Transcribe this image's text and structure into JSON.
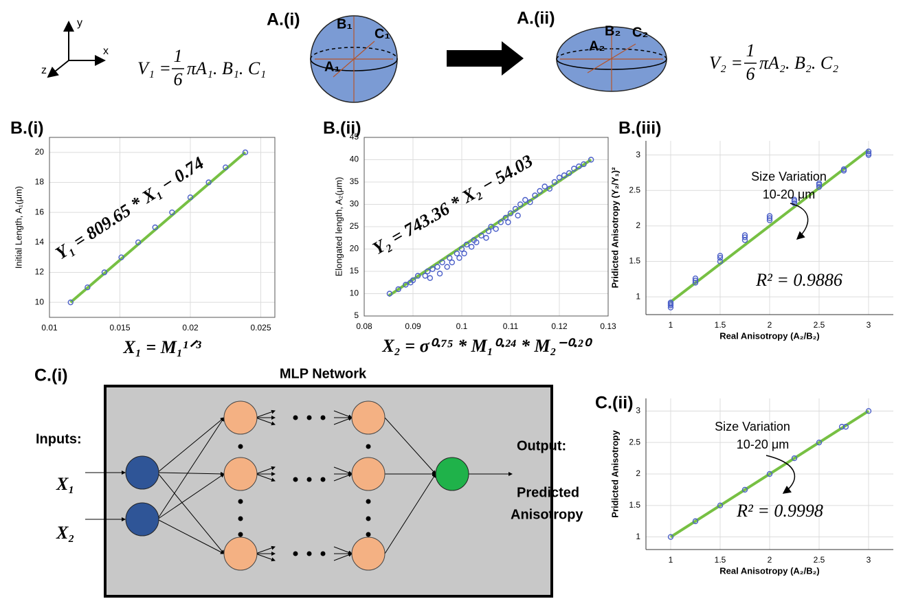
{
  "panel_a": {
    "axes": {
      "y": "y",
      "x": "x",
      "z": "z"
    },
    "label_i": "A.(i)",
    "label_ii": "A.(ii)",
    "v1": {
      "lhs": "V₁ =",
      "num": "1",
      "den": "6",
      "rhs": "πA₁. B₁. C₁"
    },
    "v2": {
      "lhs": "V₂ =",
      "num": "1",
      "den": "6",
      "rhs": "πA₂. B₂. C₂"
    },
    "sphere": {
      "a": "A₁",
      "b": "B₁",
      "c": "C₁"
    },
    "ellipsoid": {
      "a": "A₂",
      "b": "B₂",
      "c": "C₂"
    }
  },
  "panel_c_i": {
    "label": "C.(i)",
    "title": "MLP Network",
    "inputs": "Inputs:",
    "x1": "X₁",
    "x2": "X₂",
    "output": "Output:",
    "output_name": [
      "Predicted",
      "Anisotropy"
    ]
  },
  "chart_data": [
    {
      "type": "scatter",
      "title": "B.(i)",
      "xlabel": "X₁ = M₁¹ᐟ³",
      "ylabel": "Initial Length, A₁(μm)",
      "xlim": [
        0.01,
        0.026
      ],
      "ylim": [
        9,
        21
      ],
      "xticks": [
        0.01,
        0.015,
        0.02,
        0.025
      ],
      "yticks": [
        10,
        12,
        14,
        16,
        18,
        20
      ],
      "grid": true,
      "annotations": [
        "Y₁ = 809.65 * X₁ − 0.74"
      ],
      "points": {
        "color": "#4b5fc8",
        "x": [
          0.0115,
          0.0127,
          0.0139,
          0.0151,
          0.0163,
          0.0175,
          0.0187,
          0.02,
          0.0213,
          0.0225,
          0.0239
        ],
        "y": [
          10,
          11,
          12,
          13,
          14,
          15,
          16,
          17,
          18,
          19,
          20
        ]
      },
      "fit": {
        "color": "#77c043",
        "x": [
          0.0115,
          0.0239
        ],
        "y": [
          10,
          20
        ]
      }
    },
    {
      "type": "scatter",
      "title": "B.(ii)",
      "xlabel": "X₂ = σ⁰·⁷⁵ * M₁⁰·²⁴ * M₂⁻⁰·²⁰",
      "ylabel": "Elongated length, A₂(μm)",
      "xlim": [
        0.08,
        0.13
      ],
      "ylim": [
        5,
        45
      ],
      "xticks": [
        0.08,
        0.09,
        0.1,
        0.11,
        0.12,
        0.13
      ],
      "yticks": [
        5,
        10,
        15,
        20,
        25,
        30,
        35,
        40,
        45
      ],
      "grid": true,
      "annotations": [
        "Y₂ = 743.36 * X₂ − 54.03"
      ],
      "points": {
        "color": "#4b5fc8",
        "x": [
          0.0852,
          0.087,
          0.0885,
          0.0895,
          0.09,
          0.091,
          0.0925,
          0.093,
          0.0935,
          0.094,
          0.095,
          0.0955,
          0.096,
          0.097,
          0.0975,
          0.098,
          0.099,
          0.0995,
          0.1,
          0.1005,
          0.101,
          0.102,
          0.1025,
          0.103,
          0.104,
          0.105,
          0.1055,
          0.106,
          0.107,
          0.108,
          0.109,
          0.1095,
          0.11,
          0.111,
          0.1115,
          0.112,
          0.113,
          0.114,
          0.115,
          0.116,
          0.117,
          0.118,
          0.119,
          0.12,
          0.121,
          0.122,
          0.123,
          0.124,
          0.125,
          0.1265
        ],
        "y": [
          10,
          11,
          12,
          12.5,
          13,
          14,
          14,
          15,
          13.5,
          15.5,
          16,
          14.5,
          17,
          16,
          18,
          17,
          19,
          18,
          20,
          19,
          21,
          20.5,
          22,
          21.5,
          23,
          22.5,
          24,
          25,
          24.5,
          26,
          27,
          26,
          28,
          29,
          27.5,
          30,
          31,
          30.5,
          32,
          33,
          34,
          33.5,
          35,
          36,
          36.5,
          37,
          38,
          38.5,
          39,
          40
        ]
      },
      "fit": {
        "color": "#77c043",
        "x": [
          0.085,
          0.1265
        ],
        "y": [
          9.5,
          40
        ]
      }
    },
    {
      "type": "scatter",
      "title": "B.(iii)",
      "xlabel": "Real Anisotropy (A₂/B₂)",
      "ylabel": "Pridicted Anisotropy (Y₂/Y₁)²",
      "xlim": [
        0.75,
        3.25
      ],
      "ylim": [
        0.75,
        3.2
      ],
      "xticks": [
        1,
        1.5,
        2,
        2.5,
        3
      ],
      "yticks": [
        1,
        1.5,
        2,
        2.5,
        3
      ],
      "grid": true,
      "annotations": [
        "Size Variation",
        "10-20 μm",
        "R² = 0.9886"
      ],
      "points": {
        "color": "#4b5fc8",
        "x": [
          1,
          1,
          1,
          1,
          1.25,
          1.25,
          1.25,
          1.5,
          1.5,
          1.5,
          1.75,
          1.75,
          1.75,
          2,
          2,
          2,
          2.25,
          2.25,
          2.25,
          2.5,
          2.5,
          2.5,
          2.75,
          2.75,
          3,
          3,
          3
        ],
        "y": [
          0.85,
          0.88,
          0.9,
          0.92,
          1.2,
          1.23,
          1.26,
          1.5,
          1.55,
          1.58,
          1.8,
          1.84,
          1.87,
          2.08,
          2.11,
          2.14,
          2.32,
          2.35,
          2.37,
          2.55,
          2.58,
          2.6,
          2.78,
          2.8,
          3,
          3.02,
          3.05
        ]
      },
      "fit": {
        "color": "#77c043",
        "x": [
          1,
          3
        ],
        "y": [
          0.93,
          3.07
        ]
      }
    },
    {
      "type": "scatter",
      "title": "C.(ii)",
      "xlabel": "Real Anisotropy (A₂/B₂)",
      "ylabel": "Pridicted Anisotropy",
      "xlim": [
        0.75,
        3.25
      ],
      "ylim": [
        0.8,
        3.2
      ],
      "xticks": [
        1,
        1.5,
        2,
        2.5,
        3
      ],
      "yticks": [
        1,
        1.5,
        2,
        2.5,
        3
      ],
      "grid": true,
      "annotations": [
        "Size Variation",
        "10-20 μm",
        "R² = 0.9998"
      ],
      "points": {
        "color": "#4b5fc8",
        "x": [
          1,
          1.25,
          1.5,
          1.75,
          2,
          2.25,
          2.5,
          2.73,
          2.77,
          3
        ],
        "y": [
          1,
          1.25,
          1.5,
          1.75,
          2,
          2.25,
          2.5,
          2.75,
          2.75,
          3
        ]
      },
      "fit": {
        "color": "#77c043",
        "x": [
          1,
          3
        ],
        "y": [
          1,
          3
        ]
      }
    }
  ]
}
